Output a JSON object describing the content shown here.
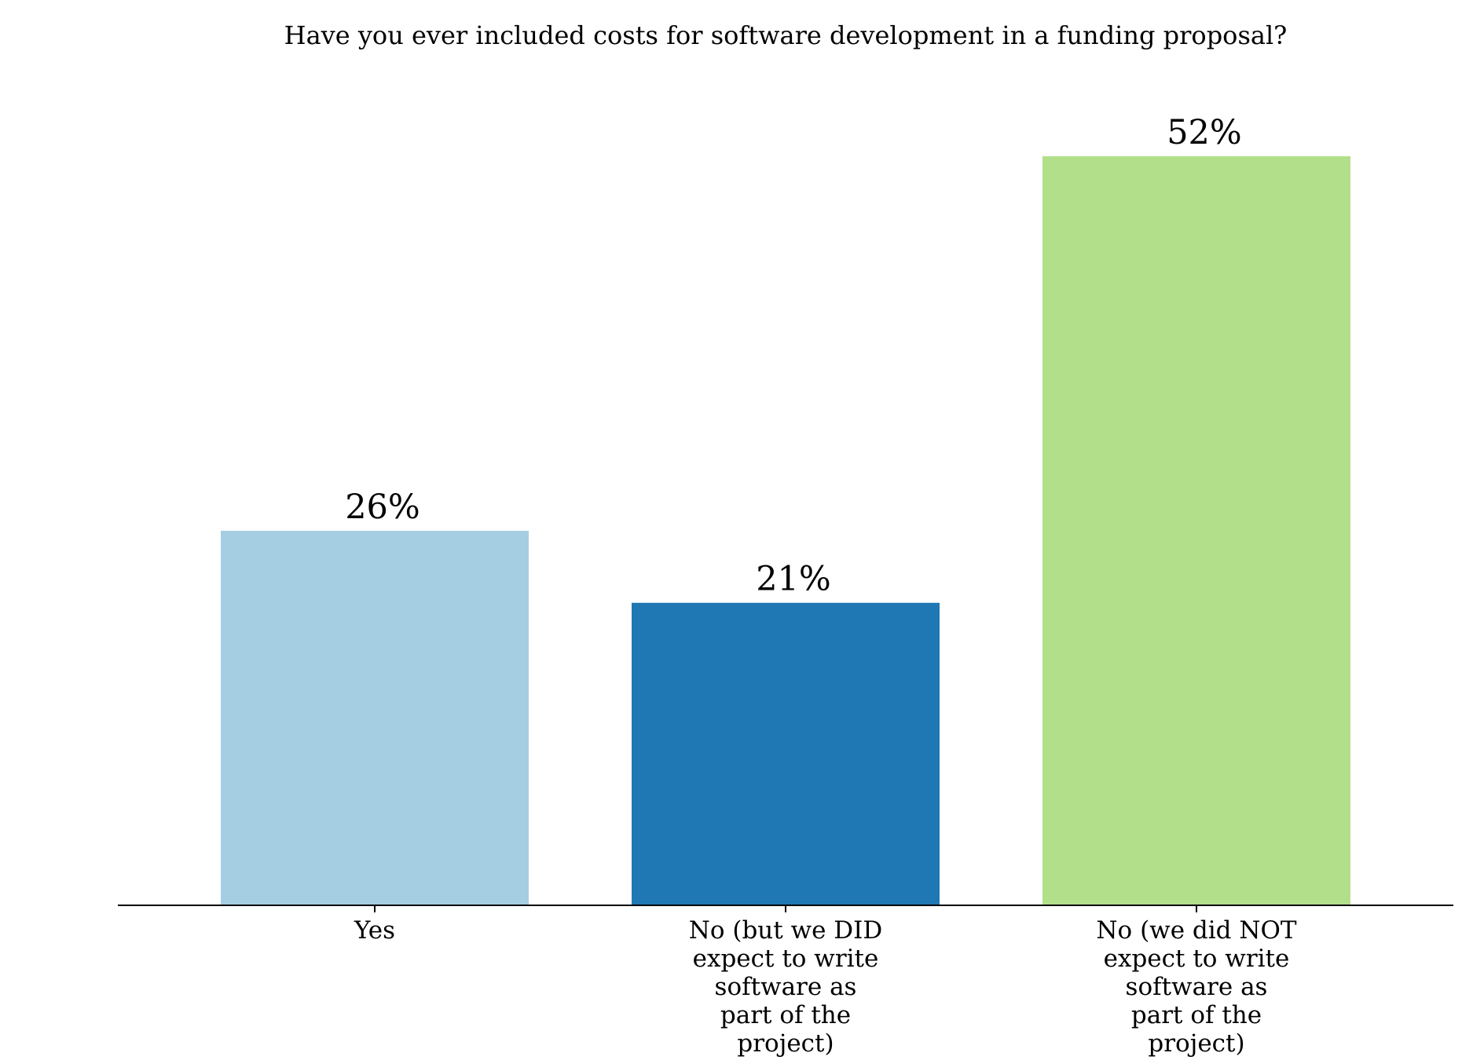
{
  "chart_data": {
    "type": "bar",
    "title": "Have you ever included costs for software development in a funding proposal?",
    "categories": [
      "Yes",
      "No (but we DID expect to write software as part of the project)",
      "No (we did NOT expect to write software as part of the project)"
    ],
    "category_lines": [
      [
        "Yes"
      ],
      [
        "No (but we DID",
        "expect to write",
        "software as",
        "part of the",
        "project)"
      ],
      [
        "No (we did NOT",
        "expect to write",
        "software as",
        "part of the",
        "project)"
      ]
    ],
    "values": [
      26,
      21,
      52
    ],
    "value_labels": [
      "26%",
      "21%",
      "52%"
    ],
    "colors": [
      "#a6cee3",
      "#1f78b4",
      "#b2df8a"
    ],
    "xlabel": "",
    "ylabel": "",
    "ylim": [
      0,
      52
    ],
    "grid": false,
    "legend": "none"
  }
}
